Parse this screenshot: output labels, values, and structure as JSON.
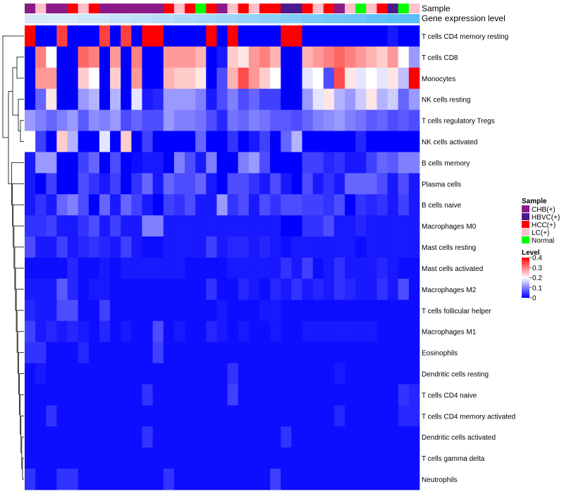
{
  "chart_data": {
    "type": "heatmap",
    "title": "",
    "annotation_labels": {
      "sample": "Sample",
      "gene": "Gene expression level"
    },
    "legend_sample": {
      "title": "Sample",
      "entries": [
        {
          "name": "CHB(+)",
          "color": "#8B1A89"
        },
        {
          "name": "HBVC(+)",
          "color": "#4B1A8C"
        },
        {
          "name": "HCC(+)",
          "color": "#FF0000"
        },
        {
          "name": "LC(+)",
          "color": "#FFC0CB"
        },
        {
          "name": "Normal",
          "color": "#00FF00"
        }
      ]
    },
    "legend_level": {
      "title": "Level",
      "ticks": [
        "0",
        "0.1",
        "0.2",
        "0.3",
        "0.4"
      ],
      "range": [
        0,
        0.4
      ],
      "colors": [
        "#0000FF",
        "#FFFFFF",
        "#FF0000"
      ]
    },
    "sample_groups": [
      "CHB(+)",
      "LC(+)",
      "CHB(+)",
      "CHB(+)",
      "HCC(+)",
      "LC(+)",
      "HCC(+)",
      "CHB(+)",
      "CHB(+)",
      "CHB(+)",
      "CHB(+)",
      "CHB(+)",
      "CHB(+)",
      "HCC(+)",
      "LC(+)",
      "HCC(+)",
      "Normal",
      "HCC(+)",
      "CHB(+)",
      "LC(+)",
      "HCC(+)",
      "LC(+)",
      "HCC(+)",
      "HCC(+)",
      "HBVC(+)",
      "HBVC(+)",
      "HCC(+)",
      "LC(+)",
      "HCC(+)",
      "CHB(+)",
      "LC(+)",
      "Normal",
      "LC(+)",
      "HCC(+)",
      "HBVC(+)",
      "Normal",
      "LC(+)"
    ],
    "gene_expression_level": [
      0.1,
      0.1,
      0.1,
      0.1,
      0.1,
      0.12,
      0.12,
      0.12,
      0.14,
      0.14,
      0.16,
      0.16,
      0.18,
      0.18,
      0.2,
      0.2,
      0.22,
      0.22,
      0.24,
      0.24,
      0.26,
      0.26,
      0.28,
      0.28,
      0.3,
      0.3,
      0.32,
      0.32,
      0.34,
      0.34,
      0.36,
      0.36,
      0.38,
      0.38,
      0.4,
      0.4,
      0.4
    ],
    "rows": [
      "T cells CD4 memory resting",
      "T cells CD8",
      "Monocytes",
      "NK cells resting",
      "T cells regulatory  Tregs",
      "NK cells activated",
      "B cells memory",
      "Plasma cells",
      "B cells naive",
      "Macrophages M0",
      "Mast cells resting",
      "Mast cells activated",
      "Macrophages M2",
      "T cells follicular helper",
      "Macrophages M1",
      "Eosinophils",
      "Dendritic cells resting",
      "T cells CD4 naive",
      "T cells CD4 memory activated",
      "Dendritic cells activated",
      "T cells gamma delta",
      "Neutrophils"
    ],
    "values": [
      [
        0.4,
        0,
        0,
        0.35,
        0,
        0,
        0,
        0.35,
        0,
        0.35,
        0,
        0.4,
        0.4,
        0,
        0,
        0,
        0,
        0.4,
        0,
        0.4,
        0,
        0,
        0,
        0,
        0.4,
        0.4,
        0,
        0,
        0,
        0,
        0,
        0,
        0,
        0,
        0.02,
        0,
        0
      ],
      [
        0,
        0.3,
        0.2,
        0,
        0,
        0.32,
        0.3,
        0,
        0.28,
        0,
        0.3,
        0,
        0,
        0.28,
        0.28,
        0.28,
        0.26,
        0,
        0.02,
        0.24,
        0.22,
        0.28,
        0.3,
        0.26,
        0,
        0,
        0.26,
        0.28,
        0.3,
        0.32,
        0.3,
        0.28,
        0.26,
        0.24,
        0.28,
        0.2,
        0.12
      ],
      [
        0,
        0.28,
        0.28,
        0,
        0,
        0.24,
        0.2,
        0,
        0.24,
        0,
        0.28,
        0,
        0,
        0.26,
        0.24,
        0.24,
        0.22,
        0,
        0.06,
        0.26,
        0.34,
        0.28,
        0.24,
        0.2,
        0,
        0,
        0.18,
        0.2,
        0.06,
        0.34,
        0.22,
        0.18,
        0.2,
        0.18,
        0.22,
        0.15,
        0.4
      ],
      [
        0,
        0.08,
        0.22,
        0,
        0,
        0.12,
        0.14,
        0,
        0.14,
        0,
        0.18,
        0.02,
        0.03,
        0.12,
        0.12,
        0.12,
        0.1,
        0.02,
        0.06,
        0.1,
        0.06,
        0.08,
        0.05,
        0.05,
        0,
        0,
        0.12,
        0.18,
        0.22,
        0.14,
        0.12,
        0.16,
        0.22,
        0.14,
        0.16,
        0.08,
        0.12
      ],
      [
        0.12,
        0.1,
        0.08,
        0.1,
        0.12,
        0.07,
        0.11,
        0.1,
        0.12,
        0.06,
        0.08,
        0.06,
        0.06,
        0.12,
        0.1,
        0.1,
        0.09,
        0.06,
        0.03,
        0.09,
        0.08,
        0.1,
        0.09,
        0.07,
        0.07,
        0.06,
        0.08,
        0.1,
        0.11,
        0.12,
        0.1,
        0.09,
        0.07,
        0.08,
        0.06,
        0.07,
        0.06
      ],
      [
        0.2,
        0.05,
        0,
        0.24,
        0.14,
        0,
        0,
        0.18,
        0,
        0.24,
        0,
        0.05,
        0,
        0,
        0,
        0,
        0.08,
        0,
        0,
        0.04,
        0,
        0.02,
        0.05,
        0,
        0.08,
        0.14,
        0,
        0,
        0,
        0,
        0,
        0.03,
        0,
        0,
        0,
        0,
        0
      ],
      [
        0.02,
        0.12,
        0.12,
        0,
        0,
        0.05,
        0.08,
        0,
        0.06,
        0,
        0.01,
        0.02,
        0.02,
        0,
        0.1,
        0.06,
        0.02,
        0.1,
        0,
        0,
        0.1,
        0.12,
        0.06,
        0,
        0,
        0,
        0.05,
        0.05,
        0.03,
        0.04,
        0.02,
        0.02,
        0.05,
        0.08,
        0.07,
        0.1,
        0.1
      ],
      [
        0.02,
        0,
        0.05,
        0,
        0,
        0.06,
        0.04,
        0.02,
        0.05,
        0,
        0.04,
        0.08,
        0.02,
        0.08,
        0.06,
        0.06,
        0.08,
        0.02,
        0,
        0.06,
        0.06,
        0.04,
        0.02,
        0.06,
        0.02,
        0,
        0.06,
        0.02,
        0.04,
        0.02,
        0.08,
        0.08,
        0.08,
        0.06,
        0.02,
        0.06,
        0.02
      ],
      [
        0.02,
        0.04,
        0.02,
        0.08,
        0.1,
        0.06,
        0,
        0.08,
        0.02,
        0.08,
        0.05,
        0.02,
        0,
        0.05,
        0.04,
        0.06,
        0.02,
        0.02,
        0.12,
        0.04,
        0.06,
        0.02,
        0.06,
        0.04,
        0.06,
        0.06,
        0.05,
        0.05,
        0.04,
        0.06,
        0,
        0.04,
        0.03,
        0.04,
        0.02,
        0.05,
        0.02
      ],
      [
        0.04,
        0.04,
        0.05,
        0.02,
        0.02,
        0.04,
        0.06,
        0.02,
        0.05,
        0.02,
        0.02,
        0.1,
        0.1,
        0.02,
        0.02,
        0.02,
        0.02,
        0.02,
        0.02,
        0.02,
        0.02,
        0.02,
        0.02,
        0.02,
        0,
        0,
        0.04,
        0.04,
        0.06,
        0.02,
        0.02,
        0.03,
        0.02,
        0.02,
        0.02,
        0.02,
        0.02
      ],
      [
        0.06,
        0.02,
        0.02,
        0.05,
        0.02,
        0.03,
        0.04,
        0.03,
        0.02,
        0.05,
        0.02,
        0.01,
        0.01,
        0.02,
        0.02,
        0.02,
        0.02,
        0.05,
        0.02,
        0.03,
        0.03,
        0.02,
        0.03,
        0.02,
        0.01,
        0.02,
        0.02,
        0.02,
        0.02,
        0.02,
        0.02,
        0.01,
        0.02,
        0.02,
        0.02,
        0.02,
        0.02
      ],
      [
        0.01,
        0.01,
        0.01,
        0.01,
        0.03,
        0.01,
        0.01,
        0.02,
        0.01,
        0.02,
        0.02,
        0.02,
        0.02,
        0.02,
        0.02,
        0.01,
        0.01,
        0.01,
        0.01,
        0.02,
        0.02,
        0.02,
        0.02,
        0.02,
        0.04,
        0.02,
        0.05,
        0.01,
        0.02,
        0.04,
        0.02,
        0.02,
        0.02,
        0.03,
        0.02,
        0.01,
        0.01
      ],
      [
        0.02,
        0.02,
        0.02,
        0.07,
        0.03,
        0.01,
        0.02,
        0.02,
        0.01,
        0.01,
        0.01,
        0.01,
        0.01,
        0.01,
        0.01,
        0.01,
        0.01,
        0.04,
        0.01,
        0.01,
        0.03,
        0.02,
        0.01,
        0.03,
        0.02,
        0.04,
        0.02,
        0.03,
        0.02,
        0.04,
        0.03,
        0.02,
        0.02,
        0.04,
        0.02,
        0.06,
        0.01
      ],
      [
        0.03,
        0.02,
        0.02,
        0.06,
        0.06,
        0.01,
        0.01,
        0.05,
        0.01,
        0.01,
        0.01,
        0.01,
        0.01,
        0.01,
        0.01,
        0.01,
        0.01,
        0.01,
        0.02,
        0.01,
        0.01,
        0.01,
        0.02,
        0.02,
        0.01,
        0.01,
        0.01,
        0.01,
        0.01,
        0.01,
        0.01,
        0.01,
        0.01,
        0.01,
        0.01,
        0.01,
        0.01
      ],
      [
        0.05,
        0.02,
        0.03,
        0.02,
        0.03,
        0.02,
        0.01,
        0.03,
        0.01,
        0.02,
        0.01,
        0.01,
        0.06,
        0.01,
        0.02,
        0.01,
        0.01,
        0.03,
        0.02,
        0.01,
        0.02,
        0.01,
        0.01,
        0.02,
        0.01,
        0.01,
        0.02,
        0.02,
        0.02,
        0.02,
        0.02,
        0.02,
        0.02,
        0.01,
        0.01,
        0.01,
        0.01
      ],
      [
        0.04,
        0.04,
        0.01,
        0.01,
        0.01,
        0.03,
        0.01,
        0.01,
        0.01,
        0.01,
        0.01,
        0.01,
        0.05,
        0.01,
        0.01,
        0.01,
        0.01,
        0.01,
        0.01,
        0.01,
        0.01,
        0.01,
        0.01,
        0.01,
        0.01,
        0.01,
        0.01,
        0.01,
        0.01,
        0.01,
        0.01,
        0.01,
        0.01,
        0.01,
        0.01,
        0.01,
        0.01
      ],
      [
        0.01,
        0.02,
        0.01,
        0.01,
        0.01,
        0.01,
        0.01,
        0.01,
        0.01,
        0.01,
        0.01,
        0.01,
        0.01,
        0.01,
        0.01,
        0.01,
        0.01,
        0.01,
        0.01,
        0.04,
        0.01,
        0.01,
        0.01,
        0.01,
        0.01,
        0.01,
        0.01,
        0.01,
        0.01,
        0.02,
        0.01,
        0.01,
        0.01,
        0.01,
        0.01,
        0.01,
        0.01
      ],
      [
        0.01,
        0.01,
        0.01,
        0.01,
        0.01,
        0.01,
        0.01,
        0.01,
        0.01,
        0.01,
        0.01,
        0.04,
        0.01,
        0.01,
        0.01,
        0.01,
        0.01,
        0.01,
        0.01,
        0.05,
        0.01,
        0.01,
        0.01,
        0.01,
        0.01,
        0.01,
        0.01,
        0.01,
        0.01,
        0.01,
        0.01,
        0.01,
        0.01,
        0.01,
        0.01,
        0.04,
        0.03
      ],
      [
        0.01,
        0.01,
        0.04,
        0.01,
        0.01,
        0.01,
        0.01,
        0.01,
        0.01,
        0.01,
        0.01,
        0.01,
        0.01,
        0.01,
        0.01,
        0.01,
        0.01,
        0.01,
        0.01,
        0.01,
        0.01,
        0.01,
        0.01,
        0.01,
        0.01,
        0.01,
        0.01,
        0.01,
        0.01,
        0.03,
        0.01,
        0.01,
        0.01,
        0.01,
        0.01,
        0.03,
        0.03
      ],
      [
        0.01,
        0.01,
        0.01,
        0.01,
        0.01,
        0.01,
        0.01,
        0.01,
        0.01,
        0.01,
        0.01,
        0.04,
        0.01,
        0.01,
        0.01,
        0.01,
        0.01,
        0.01,
        0.01,
        0.01,
        0.01,
        0.01,
        0.01,
        0.01,
        0.04,
        0.01,
        0.01,
        0.01,
        0.01,
        0.01,
        0.01,
        0.01,
        0.01,
        0.01,
        0.01,
        0.01,
        0.01
      ],
      [
        0.01,
        0.01,
        0.01,
        0.01,
        0.01,
        0.01,
        0.01,
        0.01,
        0.01,
        0.01,
        0.01,
        0.01,
        0.01,
        0.01,
        0.01,
        0.01,
        0.01,
        0.01,
        0.01,
        0.01,
        0.01,
        0.01,
        0.01,
        0.01,
        0.01,
        0.01,
        0.01,
        0.01,
        0.01,
        0.01,
        0.01,
        0.01,
        0.01,
        0.01,
        0.01,
        0.01,
        0.01
      ],
      [
        0.04,
        0.01,
        0.01,
        0.04,
        0.04,
        0.01,
        0.01,
        0.01,
        0.01,
        0.01,
        0.01,
        0.01,
        0.01,
        0.04,
        0.01,
        0.01,
        0.01,
        0.01,
        0.01,
        0.01,
        0.01,
        0.01,
        0.01,
        0.05,
        0.01,
        0.01,
        0.01,
        0.01,
        0.01,
        0.01,
        0.01,
        0.01,
        0.01,
        0.01,
        0.01,
        0.01,
        0.01
      ]
    ]
  }
}
